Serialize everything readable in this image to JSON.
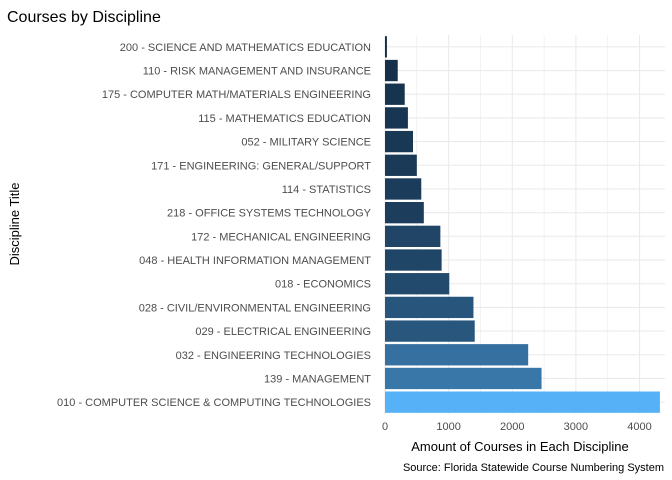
{
  "chart_data": {
    "type": "bar",
    "orientation": "horizontal",
    "title": "Courses by Discipline",
    "xlabel": "Amount of Courses in Each Discipline",
    "ylabel": "Discipline Title",
    "caption": "Source: Florida Statewide Course Numbering System",
    "xlim": [
      0,
      4400
    ],
    "xticks": [
      0,
      1000,
      2000,
      3000,
      4000
    ],
    "grid": true,
    "legend": "none",
    "colors": {
      "low": "#132B43",
      "high": "#56B1F7",
      "grid": "#ebebeb"
    },
    "categories": [
      "200  -  SCIENCE AND MATHEMATICS EDUCATION",
      "110  -  RISK MANAGEMENT AND INSURANCE",
      "175  -  COMPUTER MATH/MATERIALS ENGINEERING",
      "115  -  MATHEMATICS EDUCATION",
      "052  -  MILITARY SCIENCE",
      "171  -  ENGINEERING: GENERAL/SUPPORT",
      "114  -  STATISTICS",
      "218  -  OFFICE SYSTEMS TECHNOLOGY",
      "172  -  MECHANICAL ENGINEERING",
      "048  -  HEALTH INFORMATION MANAGEMENT",
      "018  -  ECONOMICS",
      "028  -  CIVIL/ENVIRONMENTAL ENGINEERING",
      "029  -  ELECTRICAL ENGINEERING",
      "032  -  ENGINEERING TECHNOLOGIES",
      "139  -  MANAGEMENT",
      "010  -  COMPUTER SCIENCE & COMPUTING TECHNOLOGIES"
    ],
    "values": [
      30,
      200,
      310,
      360,
      440,
      500,
      570,
      610,
      870,
      890,
      1010,
      1390,
      1410,
      2250,
      2460,
      4320
    ]
  }
}
